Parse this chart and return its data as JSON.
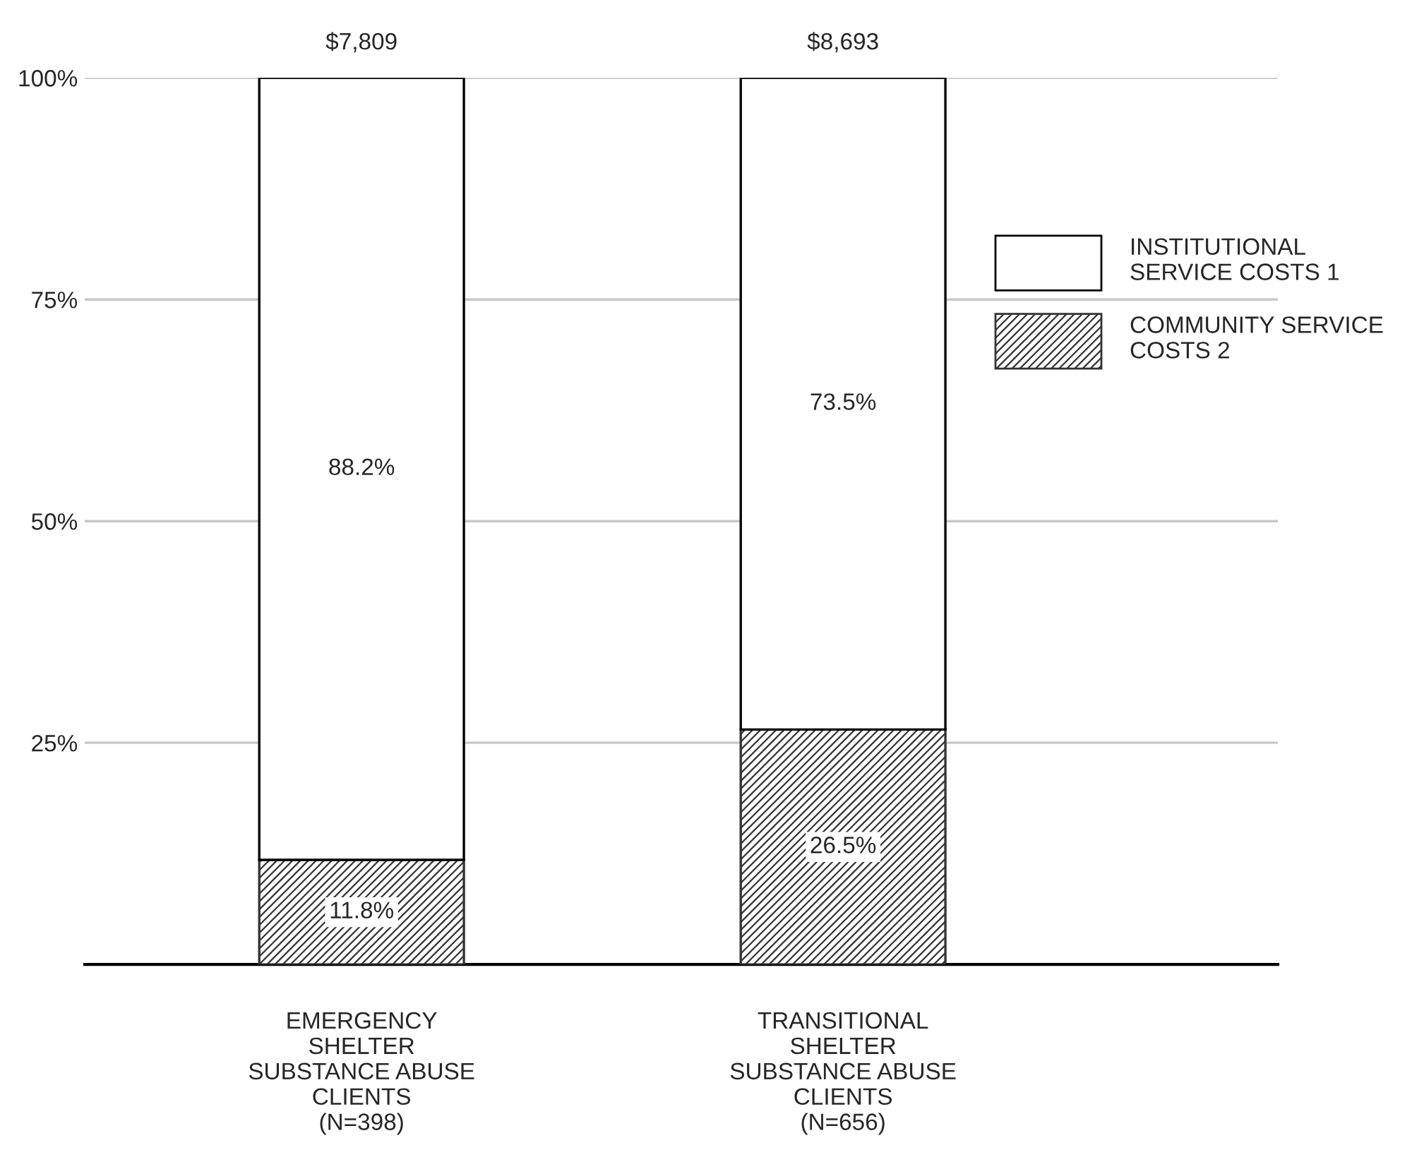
{
  "chart_data": {
    "type": "bar",
    "stacked": true,
    "categories": [
      "EMERGENCY\nSHELTER\nSUBSTANCE ABUSE\nCLIENTS\n(N=398)",
      "TRANSITIONAL\nSHELTER\nSUBSTANCE ABUSE\nCLIENTS\n(N=656)"
    ],
    "series": [
      {
        "name": "COMMUNITY SERVICE\nCOSTS 2",
        "color": "#333333",
        "values": [
          11.8,
          26.5
        ],
        "value_labels": [
          "11.8%",
          "26.5%"
        ]
      },
      {
        "name": "INSTITUTIONAL\nSERVICE COSTS 1",
        "color": "#ffffff",
        "values": [
          88.2,
          73.5
        ],
        "value_labels": [
          "88.2%",
          "73.5%"
        ]
      }
    ],
    "annotations": [
      {
        "text": "$7,809",
        "x": "EMERGENCY\nSHELTER\nSUBSTANCE ABUSE\nCLIENTS\n(N=398)",
        "y": 100
      },
      {
        "text": "$8,693",
        "x": "TRANSITIONAL\nSHELTER\nSUBSTANCE ABUSE\nCLIENTS\n(N=656)",
        "y": 100
      }
    ],
    "ylim": [
      0,
      100
    ],
    "yticks": [
      {
        "value": 25,
        "label": "25%"
      },
      {
        "value": 50,
        "label": "50%"
      },
      {
        "value": 75,
        "label": "75%"
      },
      {
        "value": 100,
        "label": "100%"
      }
    ],
    "grid": "y",
    "legend": "right"
  }
}
